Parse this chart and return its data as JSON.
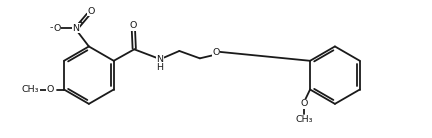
{
  "bg_color": "#ffffff",
  "line_color": "#1a1a1a",
  "line_width": 1.3,
  "text_color": "#1a1a1a",
  "font_size": 6.8,
  "fig_width": 4.32,
  "fig_height": 1.38,
  "dpi": 100,
  "xlim": [
    0.0,
    10.5
  ],
  "ylim": [
    0.3,
    3.5
  ]
}
